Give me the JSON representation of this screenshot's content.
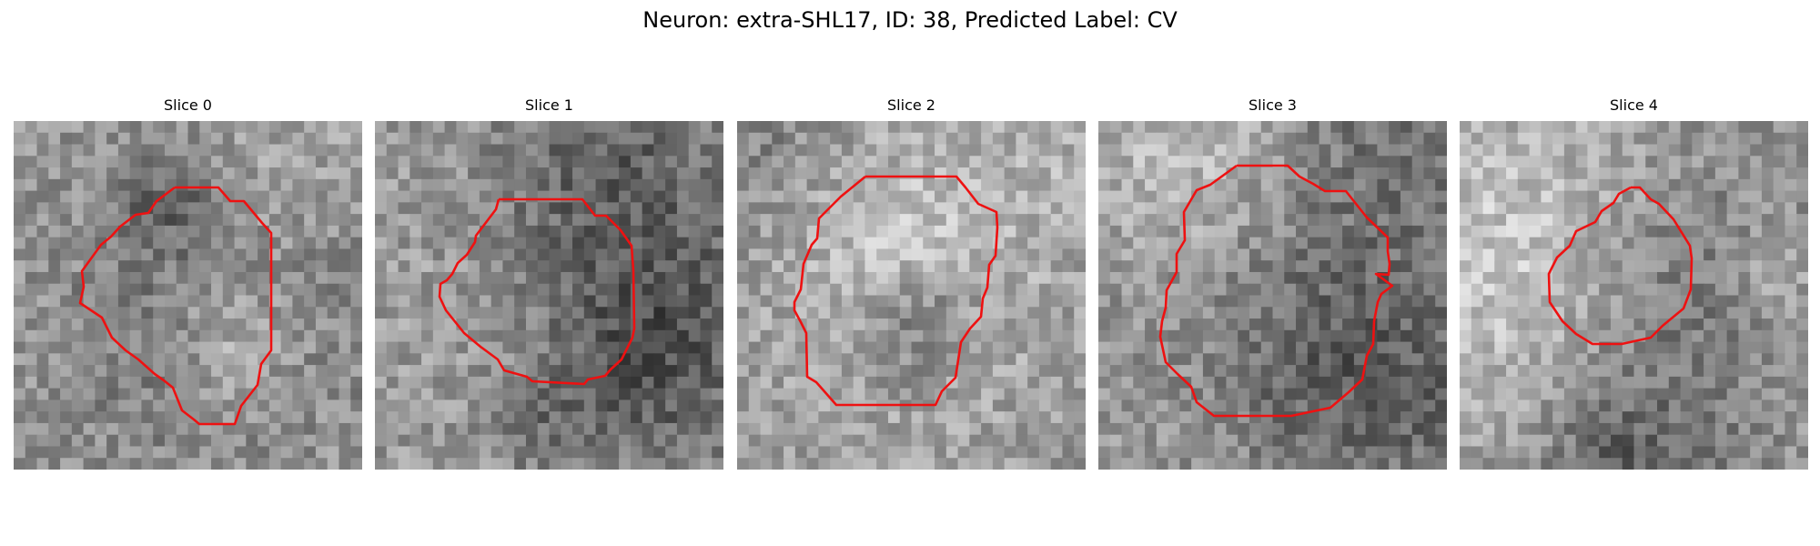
{
  "figure": {
    "title": "Neuron: extra-SHL17, ID: 38, Predicted Label: CV",
    "contour_color": "#ee1111",
    "panels": [
      {
        "label": "Slice 0",
        "image": "grayscale microscopy patch",
        "overlay": "red segmentation contour"
      },
      {
        "label": "Slice 1",
        "image": "grayscale microscopy patch",
        "overlay": "red segmentation contour"
      },
      {
        "label": "Slice 2",
        "image": "grayscale microscopy patch",
        "overlay": "red segmentation contour"
      },
      {
        "label": "Slice 3",
        "image": "grayscale microscopy patch",
        "overlay": "red segmentation contour"
      },
      {
        "label": "Slice 4",
        "image": "grayscale microscopy patch",
        "overlay": "red segmentation contour"
      }
    ]
  }
}
